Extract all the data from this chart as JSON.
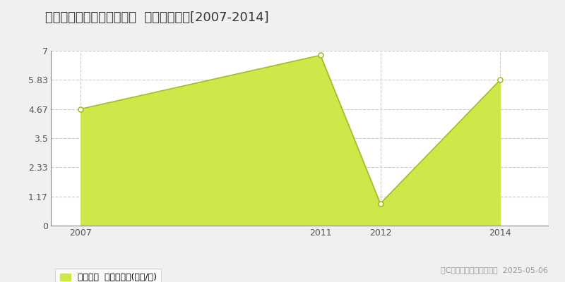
{
  "title": "中新川郡上市町放士ケ瀬新  土地価格推移[2007-2014]",
  "years": [
    2007,
    2011,
    2012,
    2014
  ],
  "values": [
    4.67,
    6.82,
    0.88,
    5.83
  ],
  "xlim": [
    2006.5,
    2014.8
  ],
  "ylim": [
    0,
    7.0
  ],
  "yticks": [
    0,
    1.17,
    2.33,
    3.5,
    4.67,
    5.83,
    7
  ],
  "ytick_labels": [
    "0",
    "1.17",
    "2.33",
    "3.5",
    "4.67",
    "5.83",
    "7"
  ],
  "xticks": [
    2007,
    2011,
    2012,
    2014
  ],
  "fill_color": "#cee84a",
  "line_color": "#aabb22",
  "marker_face_color": "#ffffff",
  "marker_edge_color": "#aabb22",
  "grid_color": "#cccccc",
  "background_color": "#f0f0f0",
  "plot_bg_color": "#ffffff",
  "legend_label": "土地価格  平均坪単価(万円/坪)",
  "copyright_text": "（C）土地価格ドットコム  2025-05-06",
  "title_fontsize": 13,
  "axis_fontsize": 9,
  "legend_fontsize": 9,
  "copyright_fontsize": 8
}
